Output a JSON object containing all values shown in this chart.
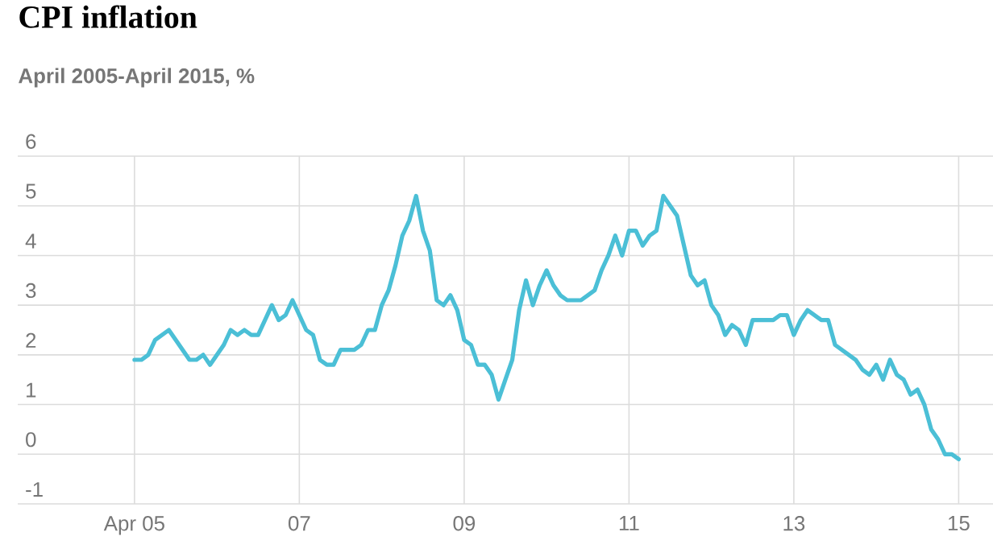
{
  "chart_data": {
    "type": "line",
    "title": "CPI inflation",
    "subtitle": "April 2005-April 2015, %",
    "x": [
      "2005-04",
      "2005-05",
      "2005-06",
      "2005-07",
      "2005-08",
      "2005-09",
      "2005-10",
      "2005-11",
      "2005-12",
      "2006-01",
      "2006-02",
      "2006-03",
      "2006-04",
      "2006-05",
      "2006-06",
      "2006-07",
      "2006-08",
      "2006-09",
      "2006-10",
      "2006-11",
      "2006-12",
      "2007-01",
      "2007-02",
      "2007-03",
      "2007-04",
      "2007-05",
      "2007-06",
      "2007-07",
      "2007-08",
      "2007-09",
      "2007-10",
      "2007-11",
      "2007-12",
      "2008-01",
      "2008-02",
      "2008-03",
      "2008-04",
      "2008-05",
      "2008-06",
      "2008-07",
      "2008-08",
      "2008-09",
      "2008-10",
      "2008-11",
      "2008-12",
      "2009-01",
      "2009-02",
      "2009-03",
      "2009-04",
      "2009-05",
      "2009-06",
      "2009-07",
      "2009-08",
      "2009-09",
      "2009-10",
      "2009-11",
      "2009-12",
      "2010-01",
      "2010-02",
      "2010-03",
      "2010-04",
      "2010-05",
      "2010-06",
      "2010-07",
      "2010-08",
      "2010-09",
      "2010-10",
      "2010-11",
      "2010-12",
      "2011-01",
      "2011-02",
      "2011-03",
      "2011-04",
      "2011-05",
      "2011-06",
      "2011-07",
      "2011-08",
      "2011-09",
      "2011-10",
      "2011-11",
      "2011-12",
      "2012-01",
      "2012-02",
      "2012-03",
      "2012-04",
      "2012-05",
      "2012-06",
      "2012-07",
      "2012-08",
      "2012-09",
      "2012-10",
      "2012-11",
      "2012-12",
      "2013-01",
      "2013-02",
      "2013-03",
      "2013-04",
      "2013-05",
      "2013-06",
      "2013-07",
      "2013-08",
      "2013-09",
      "2013-10",
      "2013-11",
      "2013-12",
      "2014-01",
      "2014-02",
      "2014-03",
      "2014-04",
      "2014-05",
      "2014-06",
      "2014-07",
      "2014-08",
      "2014-09",
      "2014-10",
      "2014-11",
      "2014-12",
      "2015-01",
      "2015-02",
      "2015-03",
      "2015-04"
    ],
    "series": [
      {
        "color": "#4bbfd6",
        "values": [
          1.9,
          1.9,
          2.0,
          2.3,
          2.4,
          2.5,
          2.3,
          2.1,
          1.9,
          1.9,
          2.0,
          1.8,
          2.0,
          2.2,
          2.5,
          2.4,
          2.5,
          2.4,
          2.4,
          2.7,
          3.0,
          2.7,
          2.8,
          3.1,
          2.8,
          2.5,
          2.4,
          1.9,
          1.8,
          1.8,
          2.1,
          2.1,
          2.1,
          2.2,
          2.5,
          2.5,
          3.0,
          3.3,
          3.8,
          4.4,
          4.7,
          5.2,
          4.5,
          4.1,
          3.1,
          3.0,
          3.2,
          2.9,
          2.3,
          2.2,
          1.8,
          1.8,
          1.6,
          1.1,
          1.5,
          1.9,
          2.9,
          3.5,
          3.0,
          3.4,
          3.7,
          3.4,
          3.2,
          3.1,
          3.1,
          3.1,
          3.2,
          3.3,
          3.7,
          4.0,
          4.4,
          4.0,
          4.5,
          4.5,
          4.2,
          4.4,
          4.5,
          5.2,
          5.0,
          4.8,
          4.2,
          3.6,
          3.4,
          3.5,
          3.0,
          2.8,
          2.4,
          2.6,
          2.5,
          2.2,
          2.7,
          2.7,
          2.7,
          2.7,
          2.8,
          2.8,
          2.4,
          2.7,
          2.9,
          2.8,
          2.7,
          2.7,
          2.2,
          2.1,
          2.0,
          1.9,
          1.7,
          1.6,
          1.8,
          1.5,
          1.9,
          1.6,
          1.5,
          1.2,
          1.3,
          1.0,
          0.5,
          0.3,
          0.0,
          0.0,
          -0.1
        ]
      }
    ],
    "xlim": [
      "2003-11",
      "2015-09"
    ],
    "xticks": [
      {
        "value": "2005-04",
        "label": "Apr 05"
      },
      {
        "value": "2007-04",
        "label": "07"
      },
      {
        "value": "2009-04",
        "label": "09"
      },
      {
        "value": "2011-04",
        "label": "11"
      },
      {
        "value": "2013-04",
        "label": "13"
      },
      {
        "value": "2015-04",
        "label": "15"
      }
    ],
    "ylim": [
      -1,
      6
    ],
    "yticks": [
      -1,
      0,
      1,
      2,
      3,
      4,
      5,
      6
    ],
    "grid": true,
    "marker": "none",
    "line_style": "solid"
  }
}
